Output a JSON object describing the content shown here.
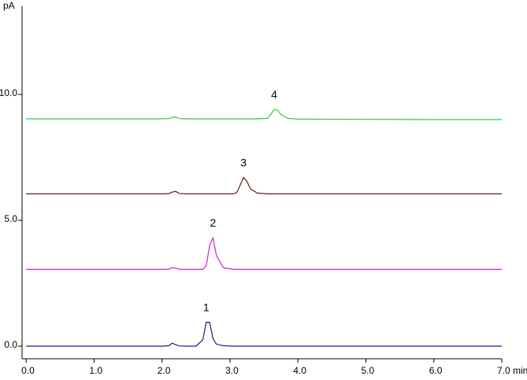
{
  "chart_data": {
    "type": "line",
    "y_label": "pA",
    "x": [
      0,
      0.5,
      1.0,
      1.5,
      2.0,
      2.1,
      2.15,
      2.2,
      2.25,
      2.35,
      2.5,
      2.6,
      2.65,
      2.7,
      2.75,
      2.8,
      2.9,
      3.05,
      3.1,
      3.15,
      3.2,
      3.25,
      3.3,
      3.4,
      3.55,
      3.6,
      3.65,
      3.7,
      3.75,
      3.85,
      4.0,
      5.0,
      6.0,
      7.0
    ],
    "series": [
      {
        "name": "1",
        "color": "#1c1c8a",
        "values": [
          0,
          0,
          0,
          0,
          0,
          0.02,
          0.12,
          0.06,
          0.01,
          0,
          0,
          0.25,
          0.95,
          0.95,
          0.3,
          0.08,
          0.02,
          0,
          0,
          0,
          0,
          0,
          0,
          0,
          0,
          0,
          0,
          0,
          0,
          0,
          0,
          0,
          0,
          0
        ]
      },
      {
        "name": "2",
        "color": "#d21fd2",
        "values": [
          3.05,
          3.05,
          3.05,
          3.05,
          3.05,
          3.06,
          3.12,
          3.1,
          3.06,
          3.05,
          3.05,
          3.05,
          3.2,
          4.0,
          4.3,
          3.6,
          3.12,
          3.05,
          3.05,
          3.05,
          3.05,
          3.05,
          3.05,
          3.05,
          3.05,
          3.05,
          3.05,
          3.05,
          3.05,
          3.05,
          3.05,
          3.05,
          3.05,
          3.05
        ]
      },
      {
        "name": "3",
        "color": "#6b1a1a",
        "values": [
          6.05,
          6.05,
          6.05,
          6.05,
          6.05,
          6.06,
          6.12,
          6.15,
          6.07,
          6.05,
          6.05,
          6.05,
          6.05,
          6.05,
          6.05,
          6.05,
          6.05,
          6.05,
          6.1,
          6.4,
          6.7,
          6.55,
          6.25,
          6.08,
          6.05,
          6.05,
          6.05,
          6.05,
          6.05,
          6.05,
          6.05,
          6.05,
          6.05,
          6.05
        ]
      },
      {
        "name": "4",
        "color": "#35c935",
        "values": [
          9.03,
          9.03,
          9.03,
          9.03,
          9.03,
          9.04,
          9.08,
          9.1,
          9.04,
          9.03,
          9.03,
          9.03,
          9.03,
          9.03,
          9.03,
          9.03,
          9.03,
          9.03,
          9.03,
          9.03,
          9.03,
          9.03,
          9.03,
          9.03,
          9.05,
          9.2,
          9.4,
          9.38,
          9.2,
          9.05,
          9.02,
          9.01,
          9.0,
          9.0
        ]
      }
    ],
    "legend": false,
    "xlim": [
      -0.06,
      7.0
    ],
    "xticks": [
      {
        "value": 0,
        "label": "0.0"
      },
      {
        "value": 1,
        "label": "1.0"
      },
      {
        "value": 2,
        "label": "2.0"
      },
      {
        "value": 3,
        "label": "3.0"
      },
      {
        "value": 4,
        "label": "4.0"
      },
      {
        "value": 5,
        "label": "5.0"
      },
      {
        "value": 6,
        "label": "6.0"
      },
      {
        "value": 7,
        "label": "7.0 min"
      }
    ],
    "ylim": [
      -0.5,
      13.5
    ],
    "yticks": [
      {
        "value": 0,
        "label": "0.0"
      },
      {
        "value": 5,
        "label": "5.0"
      },
      {
        "value": 10,
        "label": "10.0"
      }
    ]
  }
}
